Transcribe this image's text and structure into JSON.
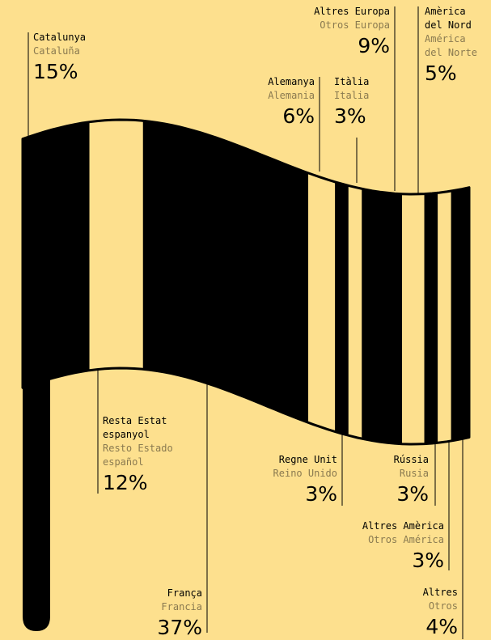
{
  "chart_data": {
    "type": "flag",
    "categories": [
      "Catalunya",
      "Resta Estat\nespanyol",
      "França",
      "Alemanya",
      "Regne Unit",
      "Itàlia",
      "Altres Europa",
      "Amèrica\ndel Nord",
      "Rússia",
      "Altres Amèrica",
      "Altres"
    ],
    "subcategories": [
      "Cataluña",
      "Resto Estado\nespañol",
      "Francia",
      "Alemania",
      "Reino Unido",
      "Italia",
      "Otros Europa",
      "América\ndel Norte",
      "Rusia",
      "Otros América",
      "Otros"
    ],
    "values": [
      15,
      12,
      37,
      6,
      3,
      3,
      9,
      5,
      3,
      3,
      4
    ],
    "value_labels": [
      "15%",
      "12%",
      "37%",
      "6%",
      "3%",
      "3%",
      "9%",
      "5%",
      "3%",
      "3%",
      "4%"
    ],
    "colors": [
      "#000000",
      "#fde08e",
      "#000000",
      "#fde08e",
      "#000000",
      "#fde08e",
      "#000000",
      "#fde08e",
      "#000000",
      "#fde08e",
      "#000000"
    ]
  }
}
